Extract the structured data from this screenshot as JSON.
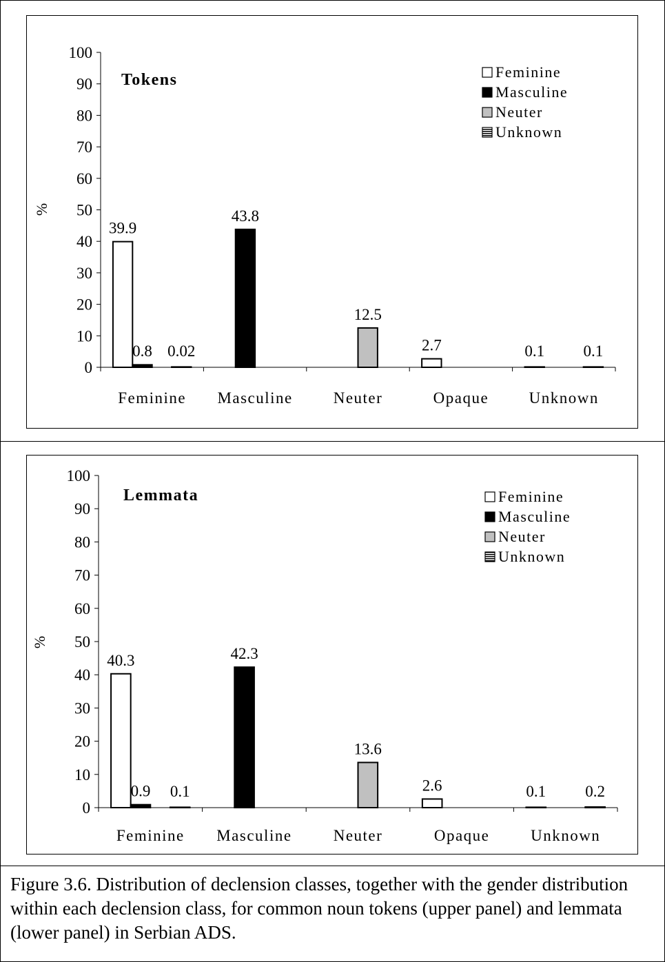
{
  "chart_data": [
    {
      "type": "bar",
      "panel_label": "Tokens",
      "ylabel": "%",
      "ylim": [
        0,
        100
      ],
      "yticks": [
        0,
        10,
        20,
        30,
        40,
        50,
        60,
        70,
        80,
        90,
        100
      ],
      "categories": [
        "Feminine",
        "Masculine",
        "Neuter",
        "Opaque",
        "Unknown"
      ],
      "series": [
        {
          "name": "Feminine",
          "color": "#ffffff",
          "values": [
            39.9,
            0,
            0,
            2.7,
            0.1
          ]
        },
        {
          "name": "Masculine",
          "color": "#000000",
          "values": [
            0.8,
            43.8,
            0,
            0,
            0
          ]
        },
        {
          "name": "Neuter",
          "color": "#c0c0c0",
          "values": [
            0,
            0,
            12.5,
            0,
            0
          ]
        },
        {
          "name": "Unknown",
          "color": "#000000",
          "pattern": "horizontal-stripes",
          "values": [
            0.02,
            0,
            0,
            0,
            0.1
          ]
        }
      ],
      "data_labels": [
        {
          "category": "Feminine",
          "series": "Feminine",
          "text": "39.9"
        },
        {
          "category": "Feminine",
          "series": "Masculine",
          "text": "0.8"
        },
        {
          "category": "Feminine",
          "series": "Unknown",
          "text": "0.02"
        },
        {
          "category": "Masculine",
          "series": "Masculine",
          "text": "43.8"
        },
        {
          "category": "Neuter",
          "series": "Neuter",
          "text": "12.5"
        },
        {
          "category": "Opaque",
          "series": "Feminine",
          "text": "2.7"
        },
        {
          "category": "Unknown",
          "series": "Feminine",
          "text": "0.1"
        },
        {
          "category": "Unknown",
          "series": "Unknown",
          "text": "0.1"
        }
      ],
      "legend_position": "top-right"
    },
    {
      "type": "bar",
      "panel_label": "Lemmata",
      "ylabel": "%",
      "ylim": [
        0,
        100
      ],
      "yticks": [
        0,
        10,
        20,
        30,
        40,
        50,
        60,
        70,
        80,
        90,
        100
      ],
      "categories": [
        "Feminine",
        "Masculine",
        "Neuter",
        "Opaque",
        "Unknown"
      ],
      "series": [
        {
          "name": "Feminine",
          "color": "#ffffff",
          "values": [
            40.3,
            0,
            0,
            2.6,
            0.1
          ]
        },
        {
          "name": "Masculine",
          "color": "#000000",
          "values": [
            0.9,
            42.3,
            0,
            0,
            0
          ]
        },
        {
          "name": "Neuter",
          "color": "#c0c0c0",
          "values": [
            0,
            0,
            13.6,
            0,
            0
          ]
        },
        {
          "name": "Unknown",
          "color": "#000000",
          "pattern": "horizontal-stripes",
          "values": [
            0.1,
            0,
            0,
            0,
            0.2
          ]
        }
      ],
      "data_labels": [
        {
          "category": "Feminine",
          "series": "Feminine",
          "text": "40.3"
        },
        {
          "category": "Feminine",
          "series": "Masculine",
          "text": "0.9"
        },
        {
          "category": "Feminine",
          "series": "Unknown",
          "text": "0.1"
        },
        {
          "category": "Masculine",
          "series": "Masculine",
          "text": "42.3"
        },
        {
          "category": "Neuter",
          "series": "Neuter",
          "text": "13.6"
        },
        {
          "category": "Opaque",
          "series": "Feminine",
          "text": "2.6"
        },
        {
          "category": "Unknown",
          "series": "Feminine",
          "text": "0.1"
        },
        {
          "category": "Unknown",
          "series": "Unknown",
          "text": "0.2"
        }
      ],
      "legend_position": "top-right"
    }
  ],
  "caption": "Figure 3.6. Distribution of declension classes, together with the gender distribution within each declension class, for common noun tokens (upper panel) and lemmata (lower panel) in Serbian ADS."
}
